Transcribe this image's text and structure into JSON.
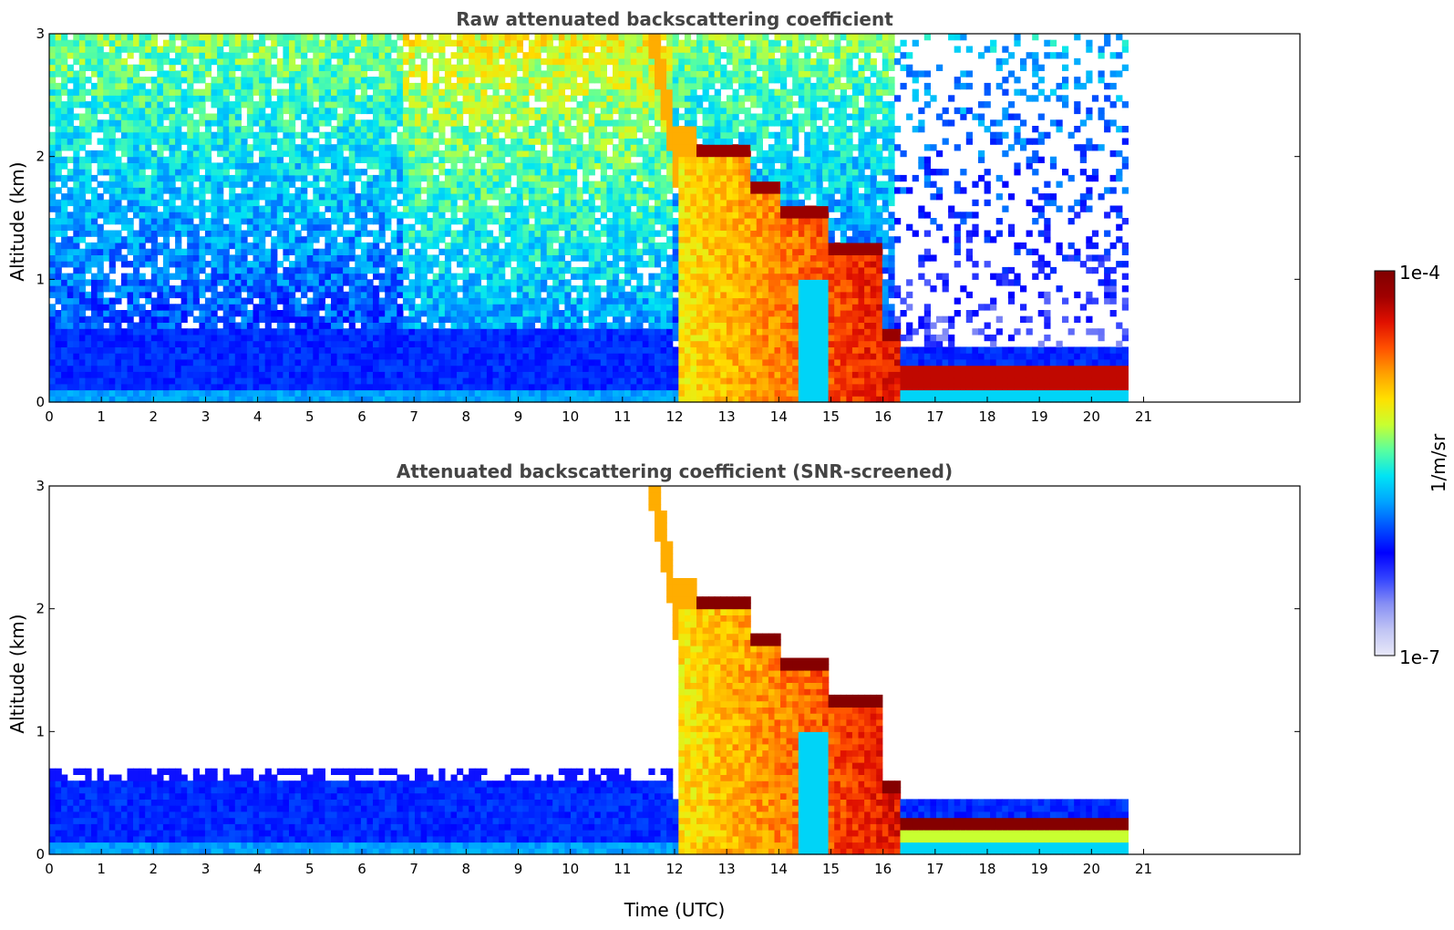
{
  "colors": {
    "colormap": [
      "#e8e8f8",
      "#c0c4f4",
      "#8890f4",
      "#3344ff",
      "#0000ff",
      "#0050ff",
      "#00a4ff",
      "#00e4f4",
      "#58ffa0",
      "#c8ff30",
      "#ffe000",
      "#ffa000",
      "#ff5000",
      "#e01000",
      "#a00000",
      "#800000"
    ],
    "background": "#ffffff"
  },
  "colorbar": {
    "max_label": "1e-4",
    "min_label": "1e-7",
    "unit_label": "1/m/sr"
  },
  "chart_data": [
    {
      "type": "heatmap",
      "title": "Raw attenuated backscattering coefficient",
      "xlabel": "",
      "ylabel": "Altitude (km)",
      "xlim": [
        0,
        24
      ],
      "ylim": [
        0,
        3
      ],
      "xticks": [
        0,
        1,
        2,
        3,
        4,
        5,
        6,
        7,
        8,
        9,
        10,
        11,
        12,
        13,
        14,
        15,
        16,
        17,
        18,
        19,
        20,
        21
      ],
      "yticks": [
        0,
        1,
        2,
        3
      ],
      "data_extent_x": [
        0,
        20.7
      ],
      "color_scale": "log",
      "color_range": [
        1e-07,
        0.0001
      ],
      "screened": false
    },
    {
      "type": "heatmap",
      "title": "Attenuated backscattering coefficient (SNR-screened)",
      "xlabel": "Time (UTC)",
      "ylabel": "Altitude (km)",
      "xlim": [
        0,
        24
      ],
      "ylim": [
        0,
        3
      ],
      "xticks": [
        0,
        1,
        2,
        3,
        4,
        5,
        6,
        7,
        8,
        9,
        10,
        11,
        12,
        13,
        14,
        15,
        16,
        17,
        18,
        19,
        20,
        21
      ],
      "yticks": [
        0,
        1,
        2,
        3
      ],
      "data_extent_x": [
        0,
        20.7
      ],
      "color_scale": "log",
      "color_range": [
        1e-07,
        0.0001
      ],
      "screened": true
    }
  ]
}
